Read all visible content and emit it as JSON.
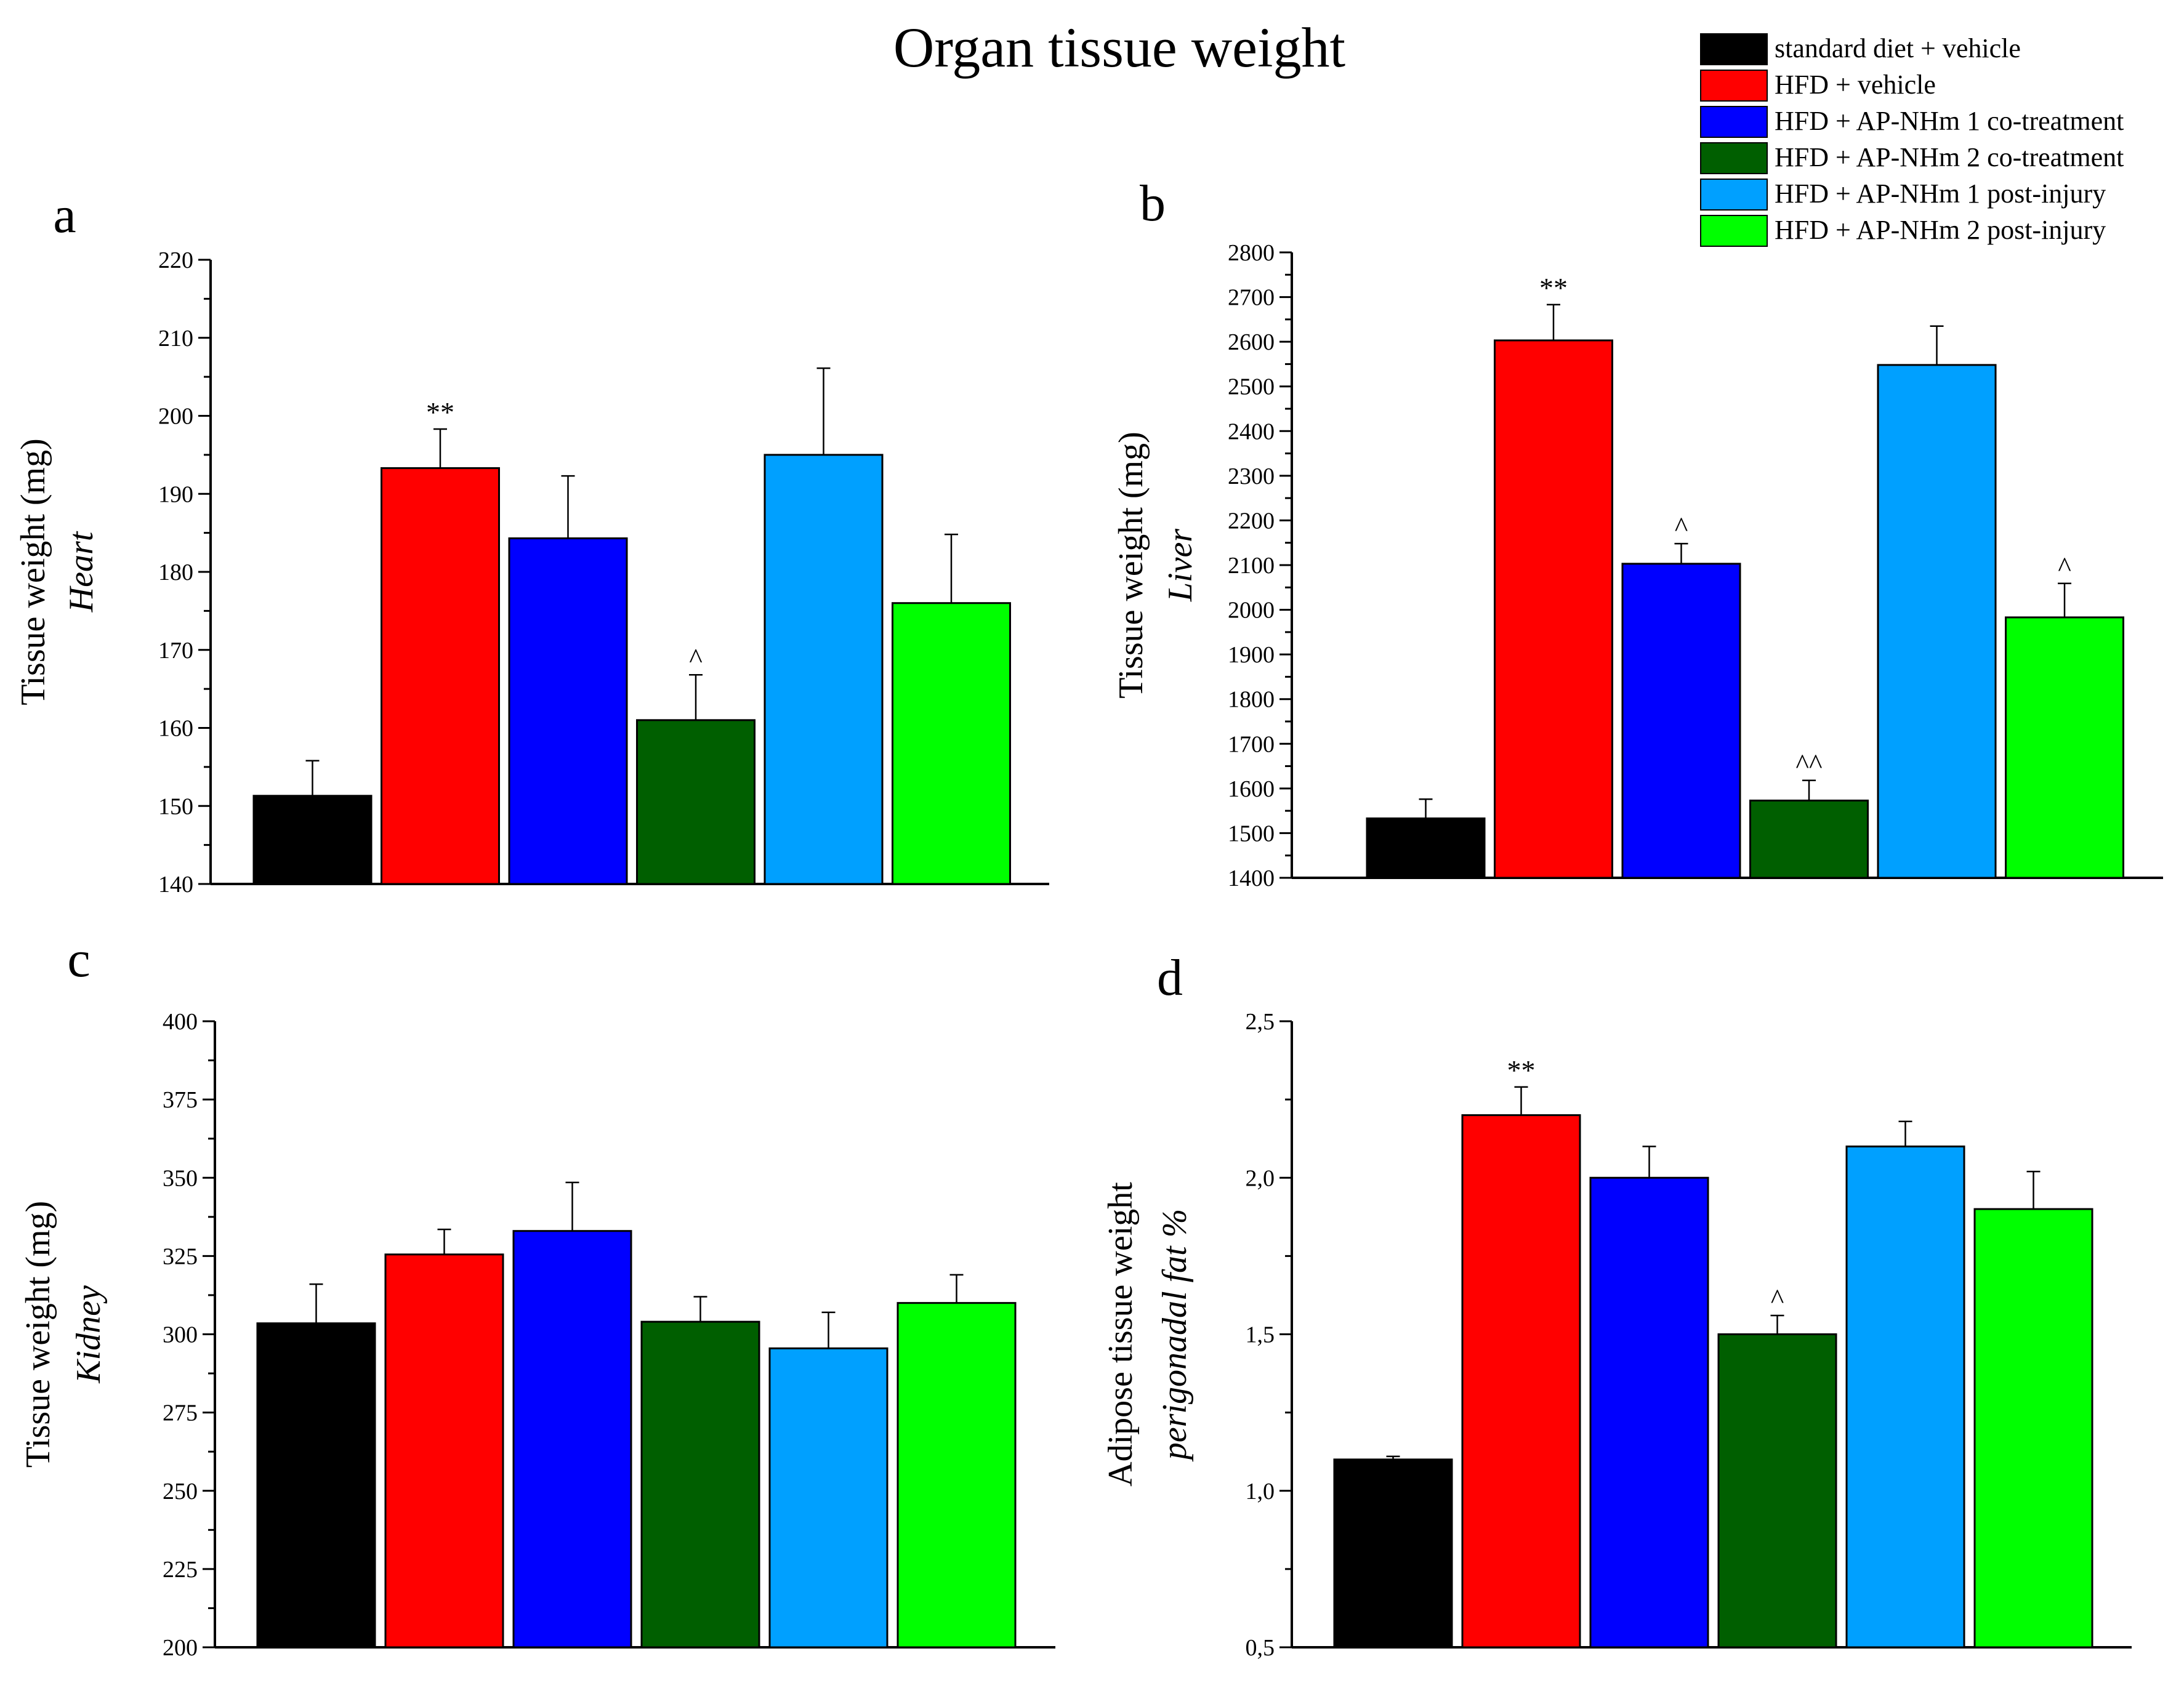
{
  "title": "Organ tissue weight",
  "legend": [
    {
      "label": "standard diet + vehicle",
      "color": "#000000"
    },
    {
      "label": "HFD + vehicle",
      "color": "#ff0000"
    },
    {
      "label": "HFD + AP-NHm 1 co-treatment",
      "color": "#0000ff"
    },
    {
      "label": "HFD + AP-NHm 2 co-treatment",
      "color": "#005f00"
    },
    {
      "label": "HFD + AP-NHm 1 post-injury",
      "color": "#00a0ff"
    },
    {
      "label": "HFD + AP-NHm 2 post-injury",
      "color": "#00ff00"
    }
  ],
  "chart_data": [
    {
      "panel": "a",
      "type": "bar",
      "ylabel": "Tissue weight (mg)",
      "ylabel_sub": "Heart",
      "ylim": [
        140,
        220
      ],
      "yticks": [
        140,
        150,
        160,
        170,
        180,
        190,
        200,
        210,
        220
      ],
      "ytick_labels": [
        "140",
        "150",
        "160",
        "170",
        "180",
        "190",
        "200",
        "210",
        "220"
      ],
      "categories": [
        "standard diet + vehicle",
        "HFD + vehicle",
        "HFD + AP-NHm 1 co-treatment",
        "HFD + AP-NHm 2 co-treatment",
        "HFD + AP-NHm 1 post-injury",
        "HFD + AP-NHm 2 post-injury"
      ],
      "values": [
        151.3,
        193.3,
        184.3,
        161,
        195,
        176
      ],
      "errors": [
        4.5,
        5,
        8,
        5.8,
        11.1,
        8.8
      ],
      "annotations": [
        "",
        "**",
        "",
        "^",
        "",
        ""
      ]
    },
    {
      "panel": "b",
      "type": "bar",
      "ylabel": "Tissue weight (mg)",
      "ylabel_sub": "Liver",
      "ylim": [
        1400,
        2800
      ],
      "yticks": [
        1400,
        1500,
        1600,
        1700,
        1800,
        1900,
        2000,
        2100,
        2200,
        2300,
        2400,
        2500,
        2600,
        2700,
        2800
      ],
      "ytick_labels": [
        "1400",
        "1500",
        "1600",
        "1700",
        "1800",
        "1900",
        "2000",
        "2100",
        "2200",
        "2300",
        "2400",
        "2500",
        "2600",
        "2700",
        "2800"
      ],
      "categories": [
        "standard diet + vehicle",
        "HFD + vehicle",
        "HFD + AP-NHm 1 co-treatment",
        "HFD + AP-NHm 2 co-treatment",
        "HFD + AP-NHm 1 post-injury",
        "HFD + AP-NHm 2 post-injury"
      ],
      "values": [
        1533,
        2603,
        2103,
        1573,
        2548,
        1983
      ],
      "errors": [
        43,
        80,
        45,
        45,
        87,
        76
      ],
      "annotations": [
        "",
        "**",
        "^",
        "^^",
        "",
        "^"
      ]
    },
    {
      "panel": "c",
      "type": "bar",
      "ylabel": "Tissue weight (mg)",
      "ylabel_sub": "Kidney",
      "ylim": [
        200,
        400
      ],
      "yticks": [
        200,
        225,
        250,
        275,
        300,
        325,
        350,
        375,
        400
      ],
      "ytick_labels": [
        "200",
        "225",
        "250",
        "275",
        "300",
        "325",
        "350",
        "375",
        "400"
      ],
      "categories": [
        "standard diet + vehicle",
        "HFD + vehicle",
        "HFD + AP-NHm 1 co-treatment",
        "HFD + AP-NHm 2 co-treatment",
        "HFD + AP-NHm 1 post-injury",
        "HFD + AP-NHm 2 post-injury"
      ],
      "values": [
        303.5,
        325.5,
        333,
        304,
        295.5,
        310
      ],
      "errors": [
        12.5,
        8,
        15.5,
        8,
        11.5,
        9
      ],
      "annotations": [
        "",
        "",
        "",
        "",
        "",
        ""
      ]
    },
    {
      "panel": "d",
      "type": "bar",
      "ylabel": "Adipose tissue weight",
      "ylabel_sub": "perigonadal fat %",
      "ylim": [
        0.5,
        2.5
      ],
      "yticks": [
        0.5,
        1.0,
        1.5,
        2.0,
        2.5
      ],
      "ytick_labels": [
        "0,5",
        "1,0",
        "1,5",
        "2,0",
        "2,5"
      ],
      "categories": [
        "standard diet + vehicle",
        "HFD + vehicle",
        "HFD + AP-NHm 1 co-treatment",
        "HFD + AP-NHm 2 co-treatment",
        "HFD + AP-NHm 1 post-injury",
        "HFD + AP-NHm 2 post-injury"
      ],
      "values": [
        1.1,
        2.2,
        2.0,
        1.5,
        2.1,
        1.9
      ],
      "errors": [
        0.01,
        0.09,
        0.1,
        0.06,
        0.08,
        0.12
      ],
      "annotations": [
        "",
        "**",
        "",
        "^",
        "",
        ""
      ]
    }
  ]
}
